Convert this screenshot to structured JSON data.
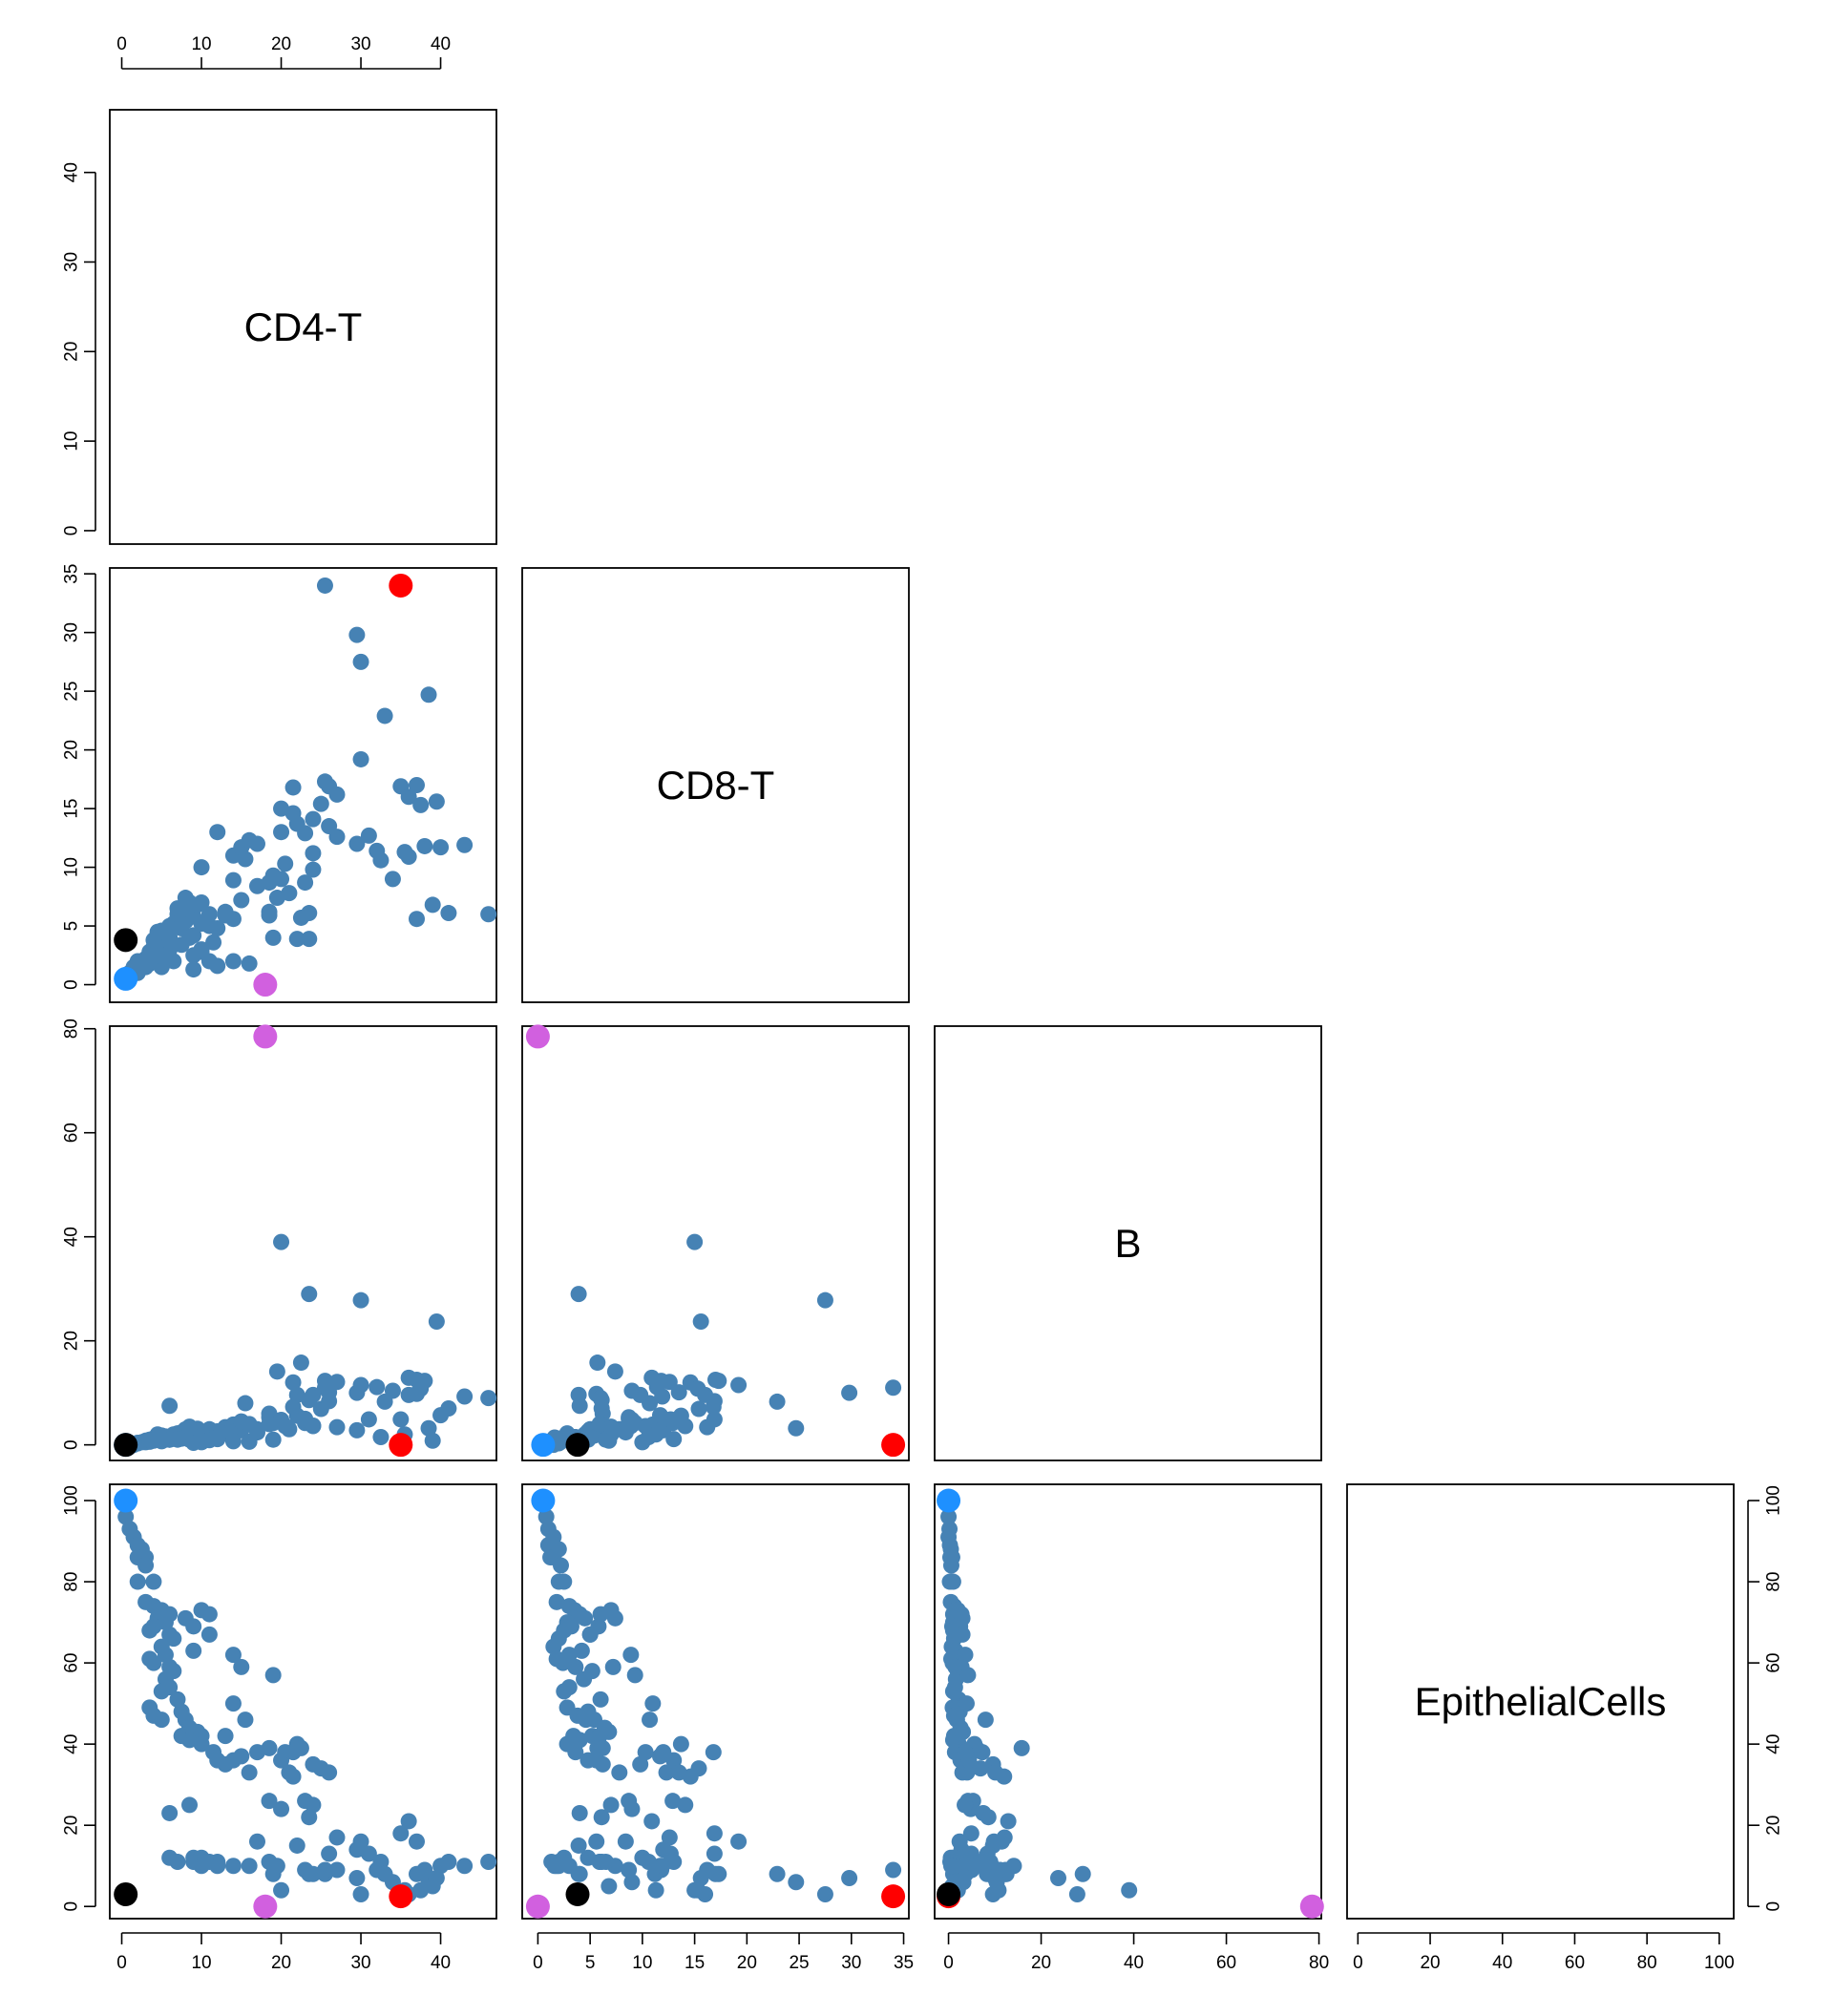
{
  "chart_data": {
    "type": "scatter",
    "layout": "pairs-lower-triangle",
    "variables": [
      "CD4-T",
      "CD8-T",
      "B",
      "EpithelialCells"
    ],
    "ranges": {
      "CD4-T": [
        -1.5,
        47
      ],
      "CD8-T": [
        -1.5,
        35.5
      ],
      "B": [
        -3,
        80.5
      ],
      "EpithelialCells": [
        -3,
        104
      ]
    },
    "ticks": {
      "CD4-T": [
        0,
        10,
        20,
        30,
        40
      ],
      "CD8-T": [
        0,
        5,
        10,
        15,
        20,
        25,
        30,
        35
      ],
      "B": [
        0,
        20,
        40,
        60,
        80
      ],
      "EpithelialCells": [
        0,
        20,
        40,
        60,
        80,
        100
      ]
    },
    "grid": false,
    "colors": {
      "samples": "#4682B4",
      "blue_highlight": "#1E90FF",
      "red_highlight": "#FF0000",
      "black_highlight": "#000000",
      "violet_highlight": "#D160DF"
    },
    "samples": [
      [
        0.5,
        0.8,
        0.0,
        96
      ],
      [
        1,
        1.0,
        0.2,
        93
      ],
      [
        1.5,
        1.5,
        0.0,
        91
      ],
      [
        2,
        1.0,
        0.3,
        89
      ],
      [
        2.5,
        2.0,
        0.5,
        88
      ],
      [
        2,
        1.2,
        0.4,
        86
      ],
      [
        3,
        1.5,
        0.8,
        86
      ],
      [
        3,
        2.2,
        0.6,
        84
      ],
      [
        4,
        2.5,
        1.0,
        80
      ],
      [
        2,
        2.0,
        0.3,
        80
      ],
      [
        3,
        1.8,
        0.5,
        75
      ],
      [
        4,
        3.0,
        1.2,
        74
      ],
      [
        5,
        3.5,
        1.5,
        73
      ],
      [
        6,
        4.0,
        1.0,
        72
      ],
      [
        4.5,
        4.5,
        2.0,
        71
      ],
      [
        5.5,
        2.8,
        1.0,
        70
      ],
      [
        4,
        3.2,
        0.8,
        69
      ],
      [
        3.5,
        2.5,
        1.0,
        68
      ],
      [
        6,
        5.0,
        1.5,
        67
      ],
      [
        6.5,
        2.0,
        1.2,
        66
      ],
      [
        5,
        1.5,
        0.7,
        64
      ],
      [
        5.5,
        3.0,
        1.2,
        62
      ],
      [
        3.5,
        1.8,
        0.6,
        61
      ],
      [
        4,
        2.4,
        0.9,
        60
      ],
      [
        6,
        3.6,
        1.5,
        59
      ],
      [
        6.5,
        5.2,
        2.0,
        58
      ],
      [
        5.5,
        4.4,
        1.6,
        56
      ],
      [
        6,
        3.0,
        1.4,
        54
      ],
      [
        5,
        2.5,
        1.0,
        53
      ],
      [
        7,
        6.0,
        2.2,
        51
      ],
      [
        3.5,
        2.8,
        0.9,
        49
      ],
      [
        4,
        3.8,
        1.2,
        47
      ],
      [
        5,
        4.6,
        1.8,
        46
      ],
      [
        8,
        7.4,
        3.0,
        71
      ],
      [
        9,
        5.8,
        2.5,
        69
      ],
      [
        10,
        7.0,
        2.0,
        73
      ],
      [
        11,
        6.0,
        2.8,
        72
      ],
      [
        11,
        5.0,
        3.0,
        67
      ],
      [
        9,
        4.2,
        1.5,
        63
      ],
      [
        7.5,
        4.8,
        2.4,
        48
      ],
      [
        8,
        5.4,
        1.8,
        46
      ],
      [
        8.5,
        6.4,
        2.6,
        44
      ],
      [
        9.5,
        6.8,
        3.1,
        43
      ],
      [
        10,
        5.2,
        1.7,
        42
      ],
      [
        7.5,
        3.4,
        1.2,
        42
      ],
      [
        8.5,
        4.0,
        1.0,
        41
      ],
      [
        10,
        2.8,
        2.2,
        40
      ],
      [
        11.5,
        3.6,
        1.4,
        38
      ],
      [
        12,
        4.8,
        2.6,
        36
      ],
      [
        13,
        6.2,
        3.4,
        35
      ],
      [
        14,
        5.6,
        2.9,
        36
      ],
      [
        13,
        5.9,
        2.2,
        42
      ],
      [
        14,
        8.9,
        3.6,
        62
      ],
      [
        15,
        7.2,
        2.8,
        59
      ],
      [
        14,
        11.0,
        3.9,
        50
      ],
      [
        15.5,
        10.7,
        8.0,
        46
      ],
      [
        15,
        11.7,
        4.5,
        37
      ],
      [
        16,
        12.3,
        4.0,
        33
      ],
      [
        17,
        12.0,
        3.0,
        38
      ],
      [
        18.5,
        6.2,
        6.0,
        39
      ],
      [
        19,
        9.3,
        4.2,
        57
      ],
      [
        18.5,
        8.7,
        5.3,
        26
      ],
      [
        20,
        9.0,
        4.8,
        24
      ],
      [
        21,
        7.8,
        3.0,
        33
      ],
      [
        20,
        13.0,
        4.4,
        36
      ],
      [
        21.5,
        14.6,
        12.0,
        32
      ],
      [
        22,
        13.7,
        5.6,
        40
      ],
      [
        23,
        12.9,
        4.2,
        26
      ],
      [
        24,
        14.1,
        3.6,
        25
      ],
      [
        23.5,
        6.1,
        8.6,
        22
      ],
      [
        24,
        9.8,
        9.6,
        35
      ],
      [
        25,
        15.4,
        6.9,
        34
      ],
      [
        26,
        13.5,
        10.1,
        33
      ],
      [
        27,
        12.6,
        12.1,
        17
      ],
      [
        26,
        16.9,
        8.4,
        13
      ],
      [
        20.5,
        10.3,
        3.6,
        38
      ],
      [
        22.5,
        5.7,
        15.8,
        39
      ],
      [
        21.5,
        16.8,
        7.3,
        38
      ],
      [
        25.5,
        17.3,
        12.3,
        8
      ],
      [
        27,
        16.2,
        3.4,
        9
      ],
      [
        19.5,
        7.4,
        14.1,
        10
      ],
      [
        22,
        3.9,
        9.6,
        15
      ],
      [
        23,
        8.7,
        5.0,
        9
      ],
      [
        24,
        11.2,
        3.7,
        8
      ],
      [
        18.5,
        5.9,
        4.0,
        11
      ],
      [
        30,
        19.2,
        11.5,
        16
      ],
      [
        29.5,
        12.0,
        2.8,
        14
      ],
      [
        31,
        12.7,
        4.9,
        13
      ],
      [
        32.5,
        10.6,
        1.5,
        11
      ],
      [
        32,
        11.4,
        11.1,
        9
      ],
      [
        34,
        9.0,
        10.4,
        6
      ],
      [
        33,
        22.9,
        8.3,
        8
      ],
      [
        35,
        16.9,
        4.9,
        18
      ],
      [
        36,
        10.9,
        12.9,
        21
      ],
      [
        37,
        5.6,
        9.8,
        16
      ],
      [
        37.5,
        15.3,
        10.8,
        4
      ],
      [
        38,
        11.8,
        12.3,
        9
      ],
      [
        38.5,
        24.7,
        3.2,
        6
      ],
      [
        39,
        6.8,
        0.8,
        5
      ],
      [
        39.5,
        15.6,
        23.7,
        7
      ],
      [
        40,
        11.7,
        5.7,
        10
      ],
      [
        41,
        6.1,
        7.0,
        11
      ],
      [
        43,
        11.9,
        9.3,
        10
      ],
      [
        46,
        6.0,
        9.0,
        11
      ],
      [
        37,
        17.0,
        12.5,
        8
      ],
      [
        20,
        15.0,
        39.0,
        4
      ],
      [
        23.5,
        3.9,
        29.0,
        8
      ],
      [
        30,
        27.5,
        27.8,
        3
      ],
      [
        29.5,
        29.8,
        10.0,
        7
      ],
      [
        25.5,
        34.0,
        11.0,
        9
      ],
      [
        36,
        16.0,
        9.6,
        3
      ],
      [
        35.5,
        11.3,
        2.0,
        4
      ],
      [
        19,
        4.0,
        1.0,
        8
      ],
      [
        10,
        10.0,
        0.5,
        12
      ],
      [
        12,
        13.0,
        1.1,
        11
      ],
      [
        6,
        4.0,
        7.5,
        23
      ],
      [
        6,
        4.8,
        1.0,
        12
      ],
      [
        7,
        6.5,
        1.0,
        11
      ],
      [
        8.5,
        7.0,
        3.5,
        25
      ],
      [
        9,
        2.5,
        1.2,
        12
      ],
      [
        9,
        1.3,
        0.4,
        11
      ],
      [
        10,
        3.0,
        1.6,
        10
      ],
      [
        11,
        2.0,
        0.9,
        11
      ],
      [
        12,
        1.6,
        1.4,
        10
      ],
      [
        16,
        1.8,
        0.6,
        10
      ],
      [
        17,
        8.4,
        2.4,
        16
      ],
      [
        14,
        2.0,
        0.7,
        10
      ]
    ],
    "highlights": [
      {
        "values": [
          35,
          34,
          0,
          2.5
        ],
        "color": "#FF0000"
      },
      {
        "values": [
          0.5,
          0.5,
          0,
          100
        ],
        "color": "#1E90FF"
      },
      {
        "values": [
          0.5,
          3.8,
          0,
          3
        ],
        "color": "#000000"
      },
      {
        "values": [
          18,
          0,
          78.5,
          0
        ],
        "color": "#D160DF"
      }
    ]
  }
}
